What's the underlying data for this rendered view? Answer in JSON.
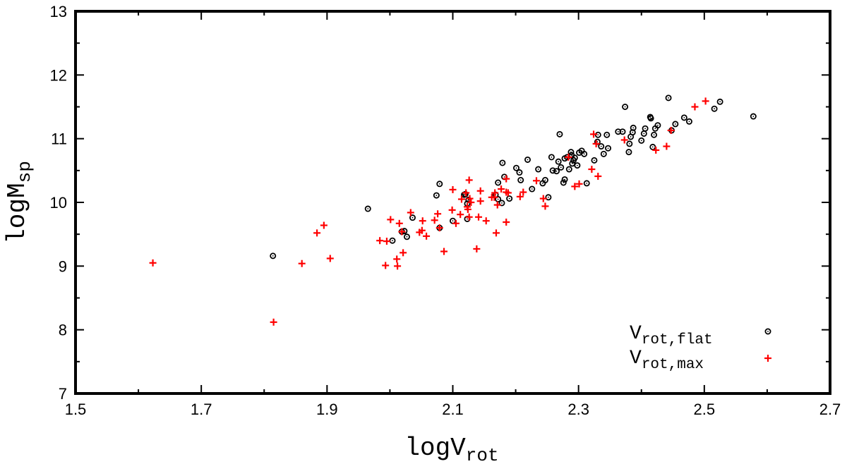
{
  "chart_data": {
    "type": "scatter",
    "title": "",
    "xlabel": {
      "main": "logV",
      "sub": "rot"
    },
    "ylabel": {
      "main": "logM",
      "sub": "sp"
    },
    "xlim": [
      1.5,
      2.7
    ],
    "ylim": [
      7,
      13
    ],
    "xticks": [
      1.5,
      1.7,
      1.9,
      2.1,
      2.3,
      2.5,
      2.7
    ],
    "xtick_labels": [
      "1.5",
      "1.7",
      "1.9",
      "2.1",
      "2.3",
      "2.5",
      "2.7"
    ],
    "yticks": [
      7,
      8,
      9,
      10,
      11,
      12,
      13
    ],
    "ytick_labels": [
      "7",
      "8",
      "9",
      "10",
      "11",
      "12",
      "13"
    ],
    "grid": false,
    "legend_position": "bottom-right",
    "series": [
      {
        "name": "V_rot,flat",
        "legend_main": "V",
        "legend_sub": "rot,flat",
        "marker": "circle-dot",
        "color": "#000000",
        "points": [
          [
            1.814,
            9.16
          ],
          [
            1.965,
            9.9
          ],
          [
            2.004,
            9.4
          ],
          [
            2.019,
            9.54
          ],
          [
            2.023,
            9.55
          ],
          [
            2.027,
            9.46
          ],
          [
            2.036,
            9.76
          ],
          [
            2.074,
            10.11
          ],
          [
            2.079,
            10.29
          ],
          [
            2.079,
            9.6
          ],
          [
            2.1,
            9.71
          ],
          [
            2.118,
            10.12
          ],
          [
            2.12,
            10.13
          ],
          [
            2.123,
            9.74
          ],
          [
            2.125,
            10.04
          ],
          [
            2.123,
            9.98
          ],
          [
            2.168,
            10.12
          ],
          [
            2.172,
            10.31
          ],
          [
            2.172,
            10.05
          ],
          [
            2.178,
            9.99
          ],
          [
            2.179,
            10.62
          ],
          [
            2.182,
            10.4
          ],
          [
            2.19,
            10.06
          ],
          [
            2.201,
            10.54
          ],
          [
            2.206,
            10.47
          ],
          [
            2.208,
            10.35
          ],
          [
            2.219,
            10.67
          ],
          [
            2.226,
            10.21
          ],
          [
            2.236,
            10.52
          ],
          [
            2.243,
            10.3
          ],
          [
            2.247,
            10.35
          ],
          [
            2.252,
            10.08
          ],
          [
            2.257,
            10.71
          ],
          [
            2.259,
            10.5
          ],
          [
            2.265,
            10.49
          ],
          [
            2.268,
            10.64
          ],
          [
            2.27,
            11.07
          ],
          [
            2.272,
            10.55
          ],
          [
            2.276,
            10.31
          ],
          [
            2.278,
            10.36
          ],
          [
            2.278,
            10.69
          ],
          [
            2.282,
            10.71
          ],
          [
            2.285,
            10.52
          ],
          [
            2.288,
            10.79
          ],
          [
            2.289,
            10.74
          ],
          [
            2.29,
            10.61
          ],
          [
            2.292,
            10.66
          ],
          [
            2.294,
            10.7
          ],
          [
            2.298,
            10.58
          ],
          [
            2.301,
            10.78
          ],
          [
            2.305,
            10.81
          ],
          [
            2.309,
            10.76
          ],
          [
            2.313,
            10.3
          ],
          [
            2.325,
            10.66
          ],
          [
            2.33,
            10.95
          ],
          [
            2.331,
            11.06
          ],
          [
            2.336,
            10.88
          ],
          [
            2.34,
            10.76
          ],
          [
            2.345,
            11.06
          ],
          [
            2.347,
            10.85
          ],
          [
            2.363,
            11.11
          ],
          [
            2.37,
            11.11
          ],
          [
            2.374,
            11.5
          ],
          [
            2.38,
            10.79
          ],
          [
            2.381,
            10.92
          ],
          [
            2.383,
            11.03
          ],
          [
            2.386,
            11.1
          ],
          [
            2.387,
            11.17
          ],
          [
            2.4,
            10.97
          ],
          [
            2.404,
            11.08
          ],
          [
            2.406,
            11.16
          ],
          [
            2.414,
            11.34
          ],
          [
            2.415,
            11.32
          ],
          [
            2.418,
            10.87
          ],
          [
            2.42,
            11.06
          ],
          [
            2.422,
            11.16
          ],
          [
            2.426,
            11.21
          ],
          [
            2.443,
            11.64
          ],
          [
            2.448,
            11.13
          ],
          [
            2.454,
            11.23
          ],
          [
            2.468,
            11.33
          ],
          [
            2.476,
            11.27
          ],
          [
            2.516,
            11.47
          ],
          [
            2.525,
            11.58
          ],
          [
            2.578,
            11.35
          ]
        ]
      },
      {
        "name": "V_rot,max",
        "legend_main": "V",
        "legend_sub": "rot,max",
        "marker": "plus",
        "color": "#ff0000",
        "points": [
          [
            1.623,
            9.05
          ],
          [
            1.815,
            8.12
          ],
          [
            1.86,
            9.04
          ],
          [
            1.884,
            9.52
          ],
          [
            1.895,
            9.64
          ],
          [
            1.905,
            9.12
          ],
          [
            1.984,
            9.4
          ],
          [
            1.993,
            9.01
          ],
          [
            1.995,
            9.39
          ],
          [
            2.001,
            9.73
          ],
          [
            2.011,
            9.11
          ],
          [
            2.012,
            9.0
          ],
          [
            2.015,
            9.67
          ],
          [
            2.019,
            9.54
          ],
          [
            2.021,
            9.21
          ],
          [
            2.033,
            9.84
          ],
          [
            2.047,
            9.53
          ],
          [
            2.051,
            9.56
          ],
          [
            2.052,
            9.71
          ],
          [
            2.058,
            9.47
          ],
          [
            2.071,
            9.72
          ],
          [
            2.076,
            9.82
          ],
          [
            2.079,
            9.6
          ],
          [
            2.086,
            9.23
          ],
          [
            2.099,
            9.88
          ],
          [
            2.1,
            10.2
          ],
          [
            2.105,
            9.67
          ],
          [
            2.112,
            9.81
          ],
          [
            2.114,
            10.05
          ],
          [
            2.121,
            10.15
          ],
          [
            2.123,
            9.93
          ],
          [
            2.124,
            9.89
          ],
          [
            2.126,
            10.35
          ],
          [
            2.126,
            9.77
          ],
          [
            2.127,
            10.06
          ],
          [
            2.129,
            10.0
          ],
          [
            2.138,
            9.27
          ],
          [
            2.141,
            9.77
          ],
          [
            2.144,
            10.02
          ],
          [
            2.144,
            10.18
          ],
          [
            2.153,
            9.71
          ],
          [
            2.162,
            10.08
          ],
          [
            2.166,
            10.08
          ],
          [
            2.167,
            10.15
          ],
          [
            2.169,
            9.52
          ],
          [
            2.171,
            9.96
          ],
          [
            2.177,
            10.21
          ],
          [
            2.185,
            10.16
          ],
          [
            2.185,
            9.69
          ],
          [
            2.185,
            10.37
          ],
          [
            2.188,
            10.15
          ],
          [
            2.207,
            10.09
          ],
          [
            2.212,
            10.16
          ],
          [
            2.233,
            10.34
          ],
          [
            2.244,
            10.06
          ],
          [
            2.247,
            9.94
          ],
          [
            2.284,
            10.71
          ],
          [
            2.294,
            10.25
          ],
          [
            2.301,
            10.29
          ],
          [
            2.321,
            10.52
          ],
          [
            2.324,
            11.07
          ],
          [
            2.328,
            10.92
          ],
          [
            2.331,
            10.41
          ],
          [
            2.373,
            10.98
          ],
          [
            2.423,
            10.82
          ],
          [
            2.44,
            10.88
          ],
          [
            2.447,
            11.13
          ],
          [
            2.485,
            11.5
          ],
          [
            2.502,
            11.59
          ]
        ]
      }
    ]
  }
}
